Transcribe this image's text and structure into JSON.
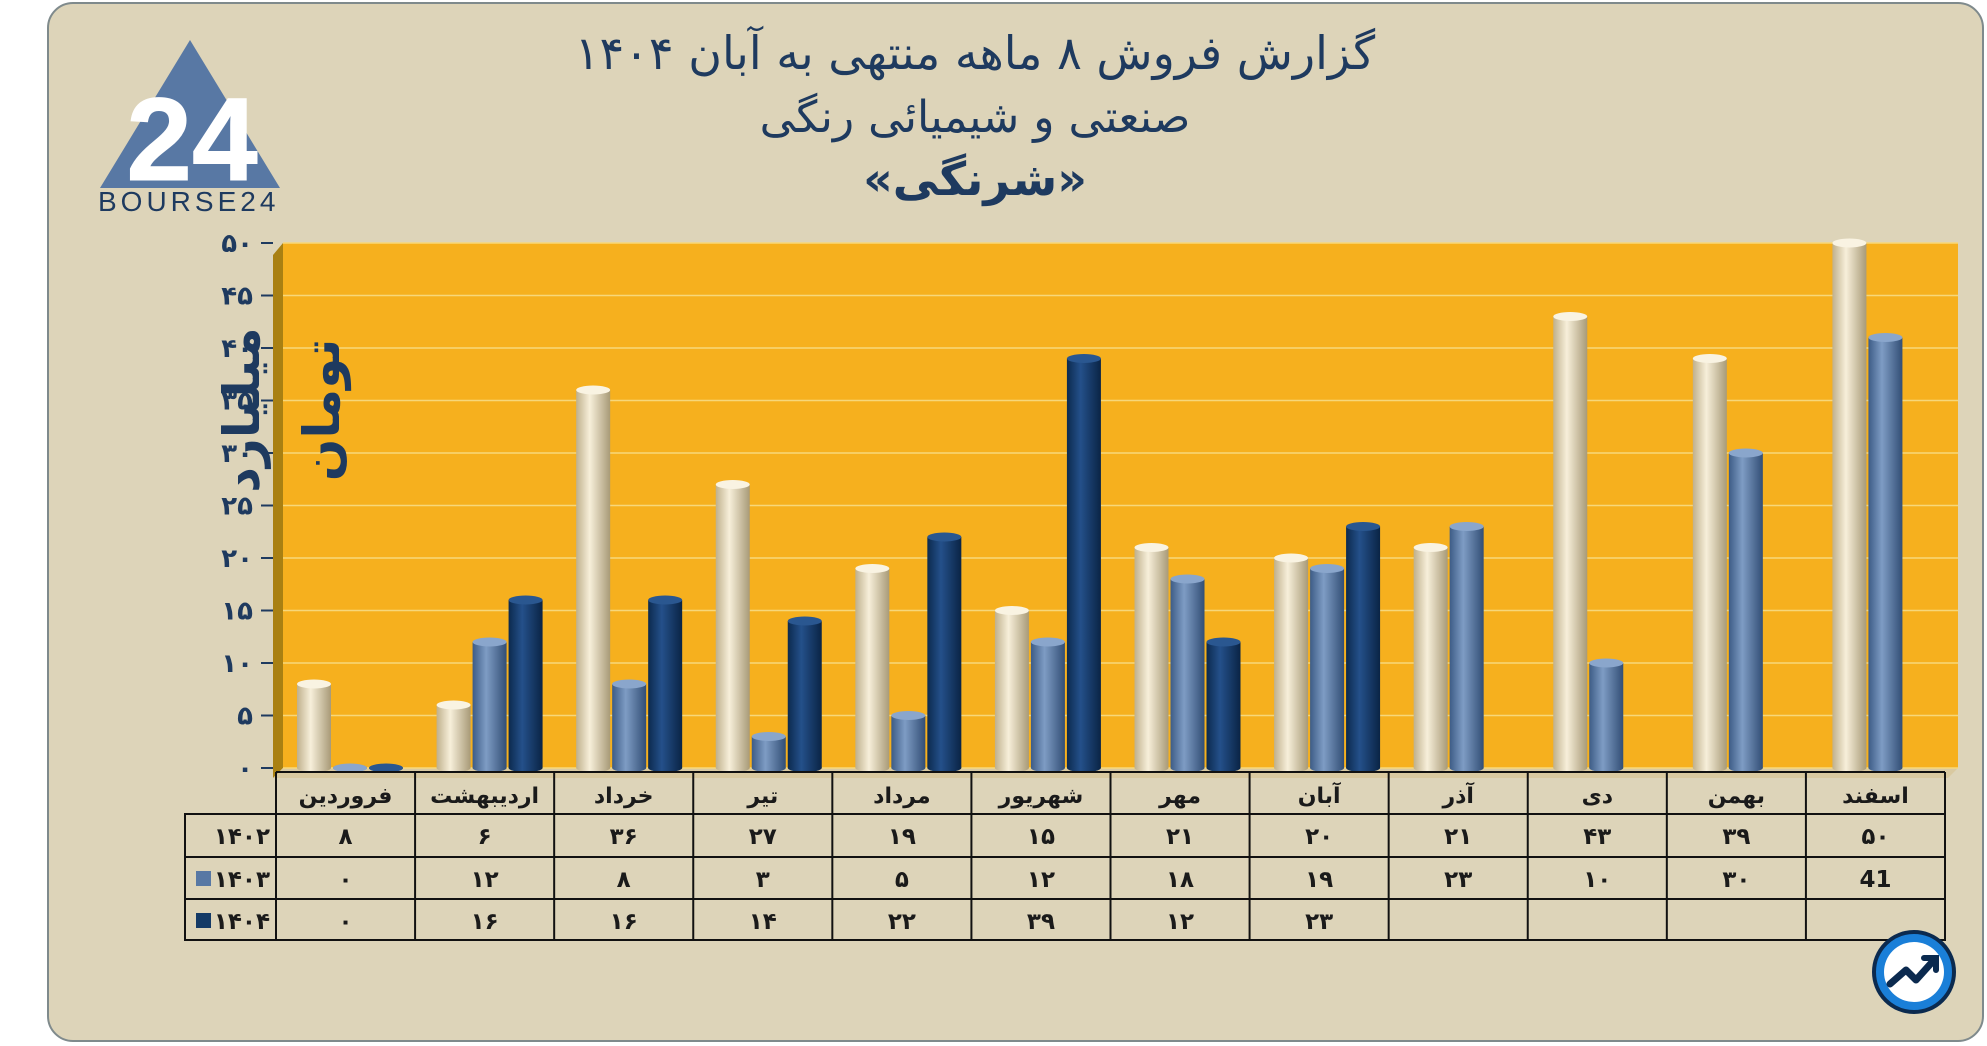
{
  "title": {
    "line1": "گزارش  فروش ۸ ماهه منتهی به آبان ۱۴۰۴",
    "line2": "صنعتی و شیمیائی رنگی",
    "line3": "«شرنگی»"
  },
  "logo": {
    "text": "BOURSE24"
  },
  "colors": {
    "background": "#ddd4b9",
    "plot_area": "#f6b01e",
    "series_1402": "#ece1c4",
    "series_1403": "#5878a4",
    "series_1404": "#143a66",
    "text": "#1e3a5f"
  },
  "chart_data": {
    "type": "bar",
    "title": "گزارش  فروش ۸ ماهه منتهی به آبان ۱۴۰۴",
    "ylabel": "میلیارد تومان",
    "ylim": [
      0,
      50
    ],
    "yticks": [
      "۰",
      "۵",
      "۱۰",
      "۱۵",
      "۲۰",
      "۲۵",
      "۳۰",
      "۳۵",
      "۴۰",
      "۴۵",
      "۵۰"
    ],
    "grid": true,
    "categories": [
      "فروردین",
      "اردیبهشت",
      "خرداد",
      "تیر",
      "مرداد",
      "شهریور",
      "مهر",
      "آبان",
      "آذر",
      "دی",
      "بهمن",
      "اسفند"
    ],
    "series": [
      {
        "name": "۱۴۰۲",
        "values": [
          8,
          6,
          36,
          27,
          19,
          15,
          21,
          20,
          21,
          43,
          39,
          50
        ],
        "labels": [
          "۸",
          "۶",
          "۳۶",
          "۲۷",
          "۱۹",
          "۱۵",
          "۲۱",
          "۲۰",
          "۲۱",
          "۴۳",
          "۳۹",
          "۵۰"
        ]
      },
      {
        "name": "۱۴۰۳",
        "values": [
          0,
          12,
          8,
          3,
          5,
          12,
          18,
          19,
          23,
          10,
          30,
          41
        ],
        "labels": [
          "۰",
          "۱۲",
          "۸",
          "۳",
          "۵",
          "۱۲",
          "۱۸",
          "۱۹",
          "۲۳",
          "۱۰",
          "۳۰",
          "41"
        ]
      },
      {
        "name": "۱۴۰۴",
        "values": [
          0,
          16,
          16,
          14,
          22,
          39,
          12,
          23,
          null,
          null,
          null,
          null
        ],
        "labels": [
          "۰",
          "۱۶",
          "۱۶",
          "۱۴",
          "۲۲",
          "۳۹",
          "۱۲",
          "۲۳",
          "",
          "",
          "",
          ""
        ]
      }
    ]
  }
}
